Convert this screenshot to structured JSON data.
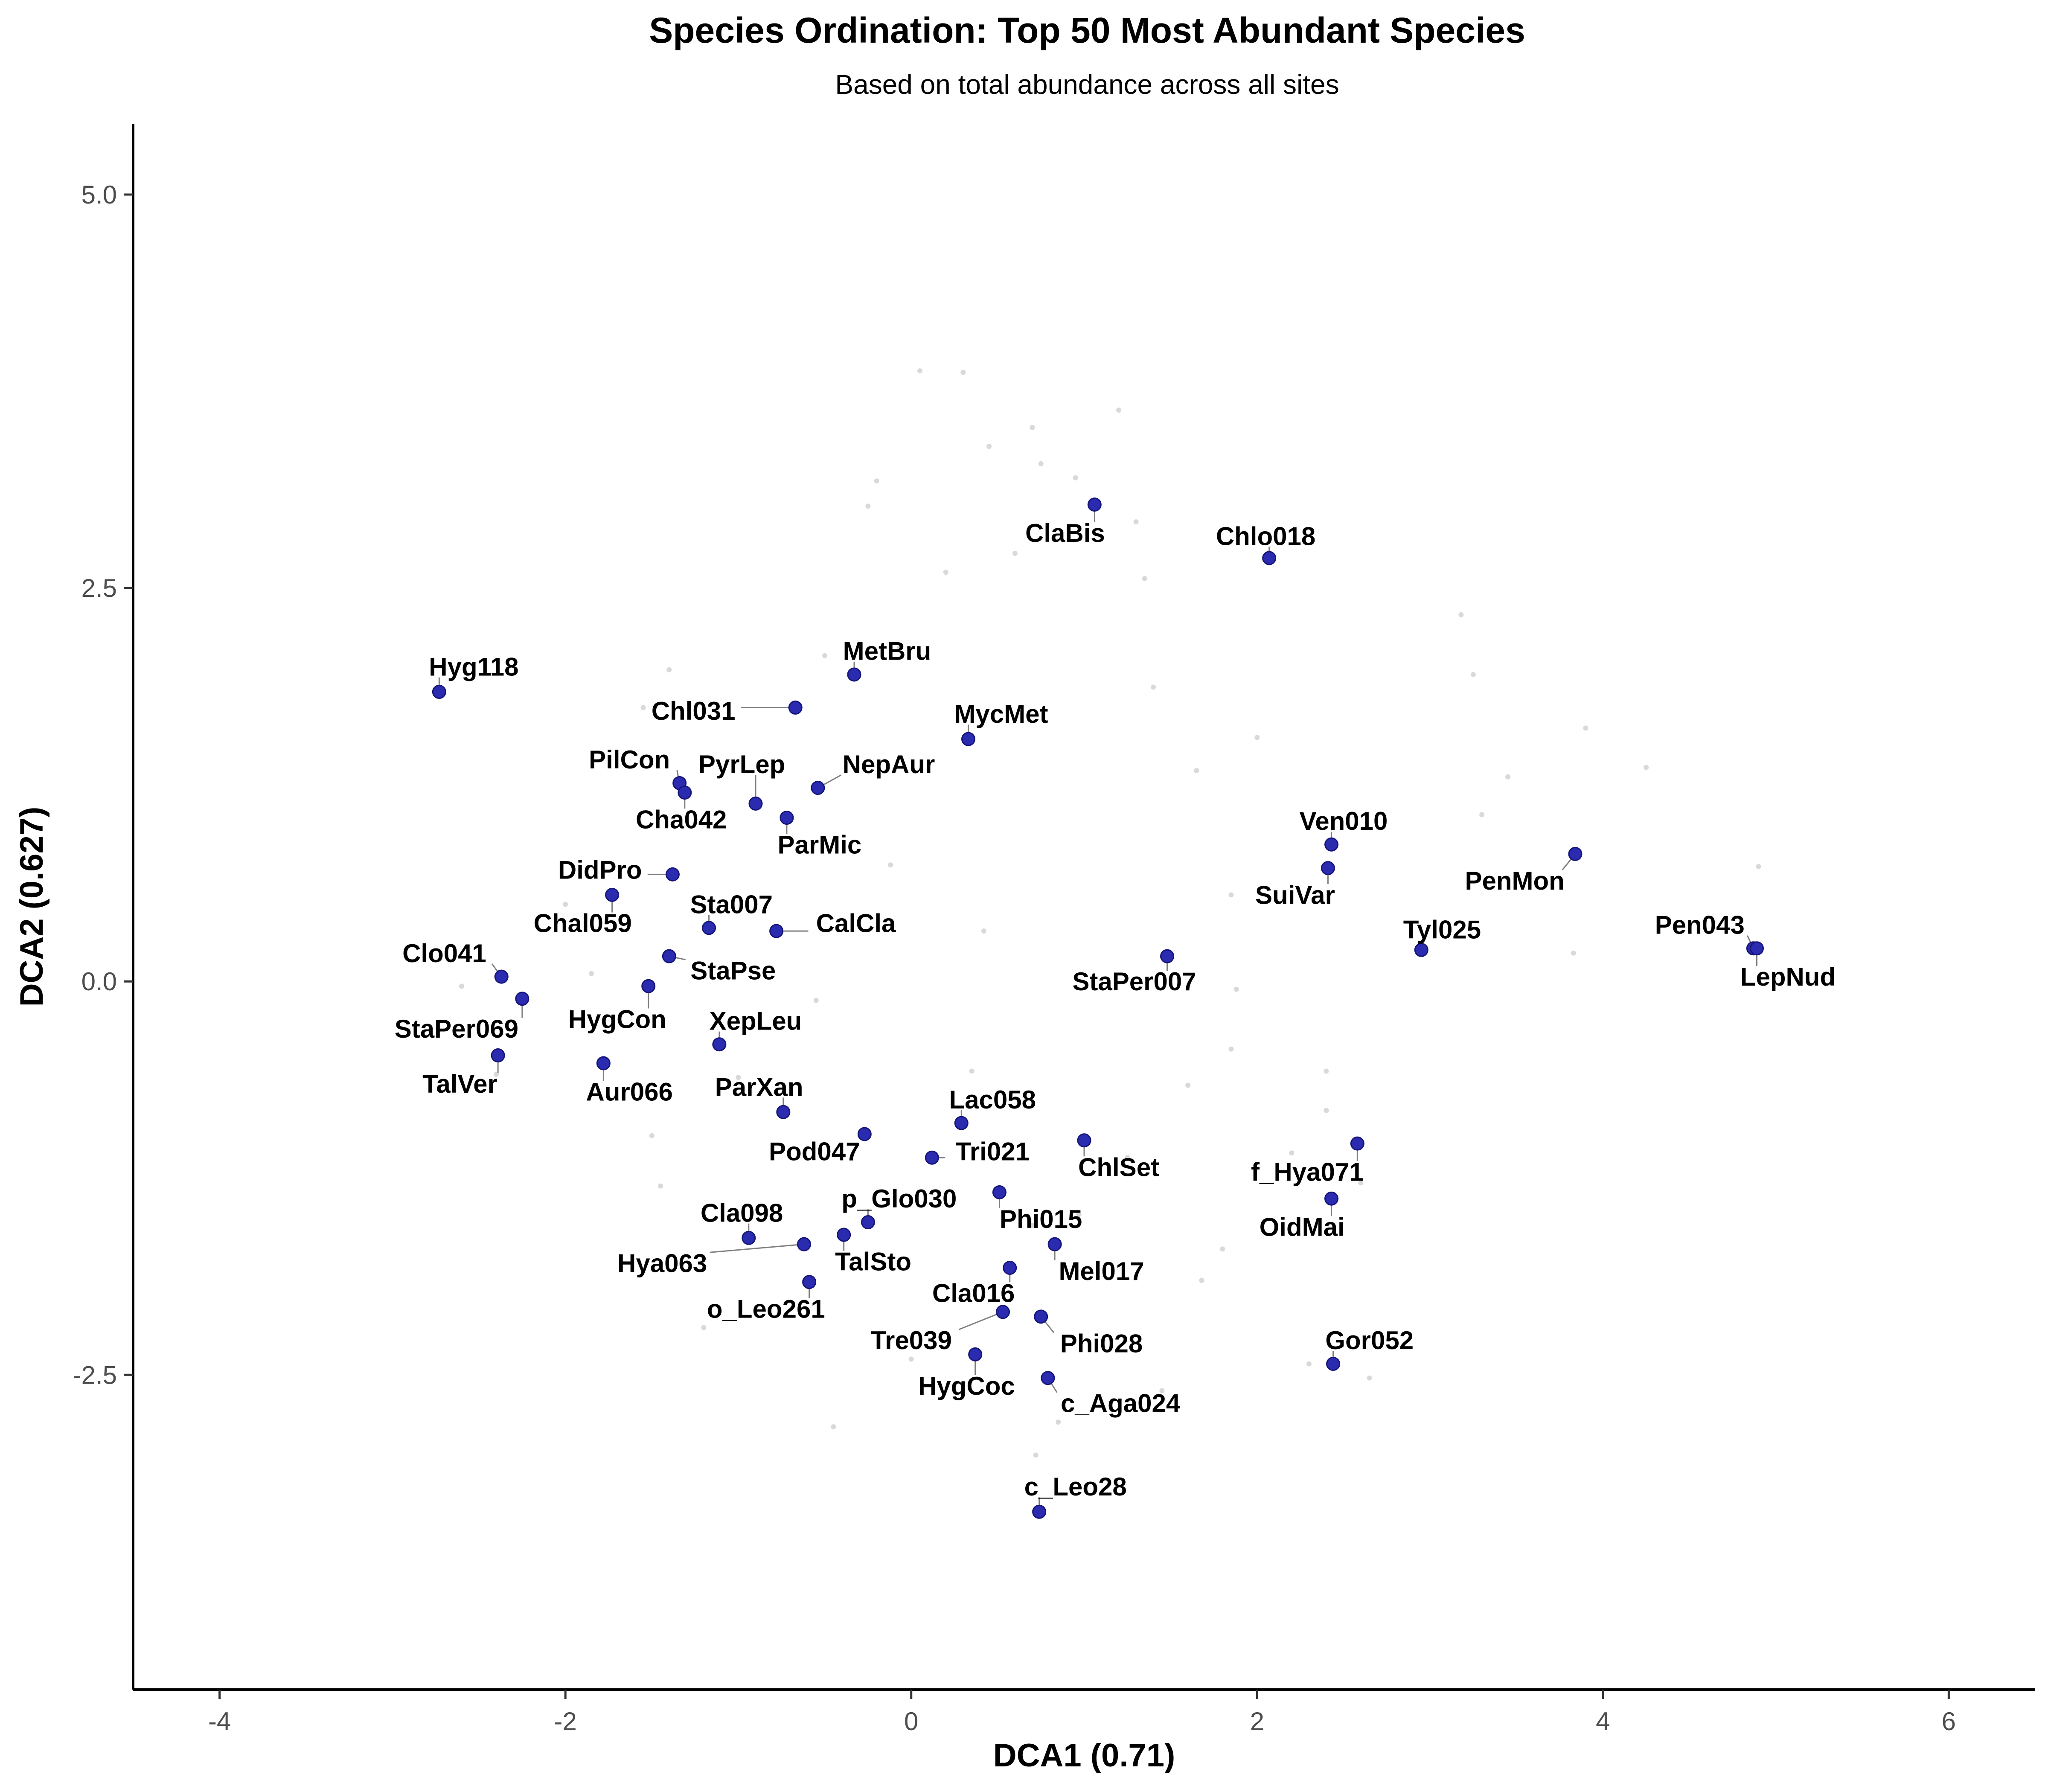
{
  "chart_data": {
    "type": "scatter",
    "title": "Species Ordination: Top 50 Most Abundant Species",
    "subtitle": "Based on total abundance across all sites",
    "xlabel": "DCA1 (0.71)",
    "ylabel": "DCA2 (0.627)",
    "xlim": [
      -4.5,
      6.5
    ],
    "ylim": [
      -4.5,
      5.45
    ],
    "xticks": [
      -4,
      -2,
      0,
      2,
      4,
      6
    ],
    "yticks": [
      -2.5,
      0.0,
      2.5,
      5.0
    ],
    "xtick_labels": [
      "-4",
      "-2",
      "0",
      "2",
      "4",
      "6"
    ],
    "ytick_labels": [
      "-2.5",
      "0.0",
      "2.5",
      "5.0"
    ],
    "grid": false,
    "colors": {
      "point_fill": "#2b2bb0",
      "point_stroke": "#15157a",
      "leader": "#7f7f7f",
      "background_points": "#d9d9d9"
    },
    "points": [
      {
        "label": "Hyg118",
        "x": -2.73,
        "y": 1.84,
        "lx": -2.53,
        "ly": 2.0
      },
      {
        "label": "MetBru",
        "x": -0.33,
        "y": 1.95,
        "lx": -0.14,
        "ly": 2.1
      },
      {
        "label": "Chl031",
        "x": -0.67,
        "y": 1.74,
        "lx": -1.26,
        "ly": 1.72
      },
      {
        "label": "MycMet",
        "x": 0.33,
        "y": 1.54,
        "lx": 0.52,
        "ly": 1.7
      },
      {
        "label": "ClaBis",
        "x": 1.06,
        "y": 3.03,
        "lx": 0.89,
        "ly": 2.85
      },
      {
        "label": "Chlo018",
        "x": 2.07,
        "y": 2.69,
        "lx": 2.05,
        "ly": 2.83
      },
      {
        "label": "PilCon",
        "x": -1.34,
        "y": 1.26,
        "lx": -1.63,
        "ly": 1.41
      },
      {
        "label": "PyrLep",
        "x": -0.9,
        "y": 1.13,
        "lx": -0.98,
        "ly": 1.38
      },
      {
        "label": "NepAur",
        "x": -0.54,
        "y": 1.23,
        "lx": -0.13,
        "ly": 1.38
      },
      {
        "label": "Cha042",
        "x": -1.31,
        "y": 1.2,
        "lx": -1.33,
        "ly": 1.03
      },
      {
        "label": "ParMic",
        "x": -0.72,
        "y": 1.04,
        "lx": -0.53,
        "ly": 0.87
      },
      {
        "label": "DidPro",
        "x": -1.38,
        "y": 0.68,
        "lx": -1.8,
        "ly": 0.71
      },
      {
        "label": "Chal059",
        "x": -1.73,
        "y": 0.55,
        "lx": -1.9,
        "ly": 0.37
      },
      {
        "label": "Sta007",
        "x": -1.17,
        "y": 0.34,
        "lx": -1.04,
        "ly": 0.49
      },
      {
        "label": "CalCla",
        "x": -0.78,
        "y": 0.32,
        "lx": -0.32,
        "ly": 0.37
      },
      {
        "label": "StaPse",
        "x": -1.4,
        "y": 0.16,
        "lx": -1.03,
        "ly": 0.07
      },
      {
        "label": "HygCon",
        "x": -1.52,
        "y": -0.03,
        "lx": -1.7,
        "ly": -0.24
      },
      {
        "label": "Clo041",
        "x": -2.37,
        "y": 0.03,
        "lx": -2.7,
        "ly": 0.18
      },
      {
        "label": "StaPer069",
        "x": -2.25,
        "y": -0.11,
        "lx": -2.63,
        "ly": -0.3
      },
      {
        "label": "TalVer",
        "x": -2.39,
        "y": -0.47,
        "lx": -2.61,
        "ly": -0.65
      },
      {
        "label": "Aur066",
        "x": -1.78,
        "y": -0.52,
        "lx": -1.63,
        "ly": -0.7
      },
      {
        "label": "XepLeu",
        "x": -1.11,
        "y": -0.4,
        "lx": -0.9,
        "ly": -0.25
      },
      {
        "label": "ParXan",
        "x": -0.74,
        "y": -0.83,
        "lx": -0.88,
        "ly": -0.67
      },
      {
        "label": "Pod047",
        "x": -0.27,
        "y": -0.97,
        "lx": -0.56,
        "ly": -1.08
      },
      {
        "label": "Lac058",
        "x": 0.29,
        "y": -0.9,
        "lx": 0.47,
        "ly": -0.75
      },
      {
        "label": "Tri021",
        "x": 0.12,
        "y": -1.12,
        "lx": 0.47,
        "ly": -1.08
      },
      {
        "label": "ChlSet",
        "x": 1.0,
        "y": -1.01,
        "lx": 1.2,
        "ly": -1.18
      },
      {
        "label": "StaPer007",
        "x": 1.48,
        "y": 0.16,
        "lx": 1.29,
        "ly": 0.0
      },
      {
        "label": "p_Glo030",
        "x": -0.25,
        "y": -1.53,
        "lx": -0.07,
        "ly": -1.38
      },
      {
        "label": "Cla098",
        "x": -0.94,
        "y": -1.63,
        "lx": -0.98,
        "ly": -1.47
      },
      {
        "label": "Hya063",
        "x": -0.62,
        "y": -1.67,
        "lx": -1.44,
        "ly": -1.79
      },
      {
        "label": "TalSto",
        "x": -0.39,
        "y": -1.61,
        "lx": -0.22,
        "ly": -1.78
      },
      {
        "label": "o_Leo261",
        "x": -0.59,
        "y": -1.91,
        "lx": -0.84,
        "ly": -2.08
      },
      {
        "label": "Phi015",
        "x": 0.51,
        "y": -1.34,
        "lx": 0.75,
        "ly": -1.51
      },
      {
        "label": "Mel017",
        "x": 0.83,
        "y": -1.67,
        "lx": 1.1,
        "ly": -1.84
      },
      {
        "label": "Cla016",
        "x": 0.57,
        "y": -1.82,
        "lx": 0.36,
        "ly": -1.98
      },
      {
        "label": "Phi028",
        "x": 0.75,
        "y": -2.13,
        "lx": 1.1,
        "ly": -2.3
      },
      {
        "label": "Tre039",
        "x": 0.53,
        "y": -2.1,
        "lx": 0.0,
        "ly": -2.28
      },
      {
        "label": "HygCoc",
        "x": 0.37,
        "y": -2.37,
        "lx": 0.32,
        "ly": -2.57
      },
      {
        "label": "c_Aga024",
        "x": 0.79,
        "y": -2.52,
        "lx": 1.21,
        "ly": -2.68
      },
      {
        "label": "c_Leo28",
        "x": 0.74,
        "y": -3.37,
        "lx": 0.95,
        "ly": -3.21
      },
      {
        "label": "Gor052",
        "x": 2.44,
        "y": -2.43,
        "lx": 2.65,
        "ly": -2.28
      },
      {
        "label": "f_Hya071",
        "x": 2.58,
        "y": -1.03,
        "lx": 2.29,
        "ly": -1.21
      },
      {
        "label": "OidMai",
        "x": 2.43,
        "y": -1.38,
        "lx": 2.26,
        "ly": -1.56
      },
      {
        "label": "Ven010",
        "x": 2.43,
        "y": 0.87,
        "lx": 2.5,
        "ly": 1.02
      },
      {
        "label": "SuiVar",
        "x": 2.41,
        "y": 0.72,
        "lx": 2.22,
        "ly": 0.55
      },
      {
        "label": "PenMon",
        "x": 3.84,
        "y": 0.81,
        "lx": 3.49,
        "ly": 0.64
      },
      {
        "label": "Tyl025",
        "x": 2.95,
        "y": 0.2,
        "lx": 3.07,
        "ly": 0.33
      },
      {
        "label": "Pen043",
        "x": 4.87,
        "y": 0.21,
        "lx": 4.56,
        "ly": 0.36
      },
      {
        "label": "LepNud",
        "x": 4.89,
        "y": 0.21,
        "lx": 5.07,
        "ly": 0.03
      }
    ],
    "background_points": [
      [
        0.05,
        3.88
      ],
      [
        0.3,
        3.87
      ],
      [
        0.7,
        3.52
      ],
      [
        0.45,
        3.4
      ],
      [
        1.2,
        3.63
      ],
      [
        -0.2,
        3.18
      ],
      [
        0.95,
        3.2
      ],
      [
        0.75,
        3.29
      ],
      [
        -0.25,
        3.02
      ],
      [
        1.3,
        2.92
      ],
      [
        0.2,
        2.6
      ],
      [
        0.6,
        2.72
      ],
      [
        1.35,
        2.56
      ],
      [
        3.18,
        2.33
      ],
      [
        -0.5,
        2.07
      ],
      [
        3.25,
        1.95
      ],
      [
        -1.4,
        1.98
      ],
      [
        -0.07,
        2.12
      ],
      [
        1.4,
        1.87
      ],
      [
        -1.55,
        1.74
      ],
      [
        1.65,
        1.34
      ],
      [
        2.0,
        1.55
      ],
      [
        3.9,
        1.61
      ],
      [
        3.45,
        1.3
      ],
      [
        4.25,
        1.36
      ],
      [
        3.3,
        1.06
      ],
      [
        4.9,
        0.73
      ],
      [
        -0.12,
        0.74
      ],
      [
        1.85,
        0.55
      ],
      [
        -2.0,
        0.49
      ],
      [
        0.42,
        0.32
      ],
      [
        -2.6,
        -0.03
      ],
      [
        -1.85,
        0.05
      ],
      [
        -0.55,
        -0.12
      ],
      [
        3.83,
        0.18
      ],
      [
        1.88,
        -0.05
      ],
      [
        -2.4,
        -0.59
      ],
      [
        -1.0,
        -0.61
      ],
      [
        0.35,
        -0.57
      ],
      [
        1.85,
        -0.43
      ],
      [
        2.4,
        -0.57
      ],
      [
        2.4,
        -0.82
      ],
      [
        1.6,
        -0.66
      ],
      [
        -1.5,
        -0.98
      ],
      [
        1.25,
        -1.12
      ],
      [
        2.2,
        -1.09
      ],
      [
        0.97,
        -1.48
      ],
      [
        2.6,
        -1.28
      ],
      [
        1.8,
        -1.7
      ],
      [
        0.7,
        -1.55
      ],
      [
        1.68,
        -1.9
      ],
      [
        2.3,
        -2.43
      ],
      [
        2.65,
        -2.52
      ],
      [
        0.72,
        -3.01
      ],
      [
        0.85,
        -2.8
      ],
      [
        -0.45,
        -2.83
      ],
      [
        -1.2,
        -2.2
      ],
      [
        -1.45,
        -1.3
      ],
      [
        1.45,
        -2.6
      ],
      [
        0.0,
        -2.4
      ]
    ]
  }
}
